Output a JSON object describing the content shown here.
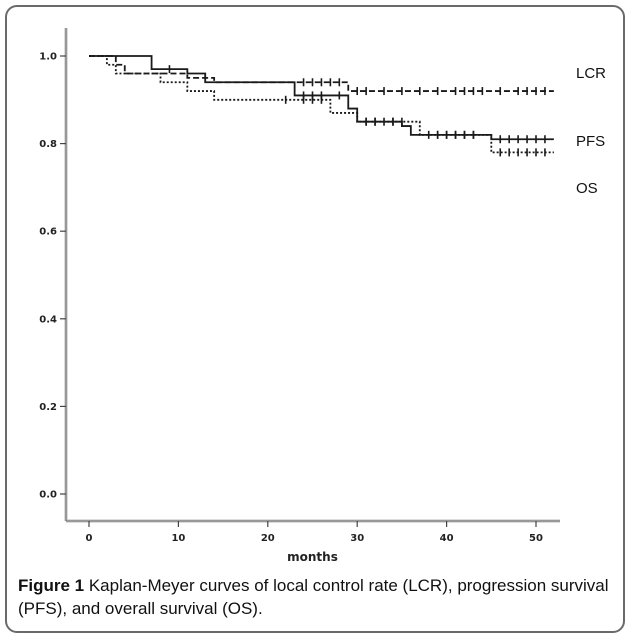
{
  "chart_data": {
    "type": "line",
    "title": "",
    "xlabel": "months",
    "ylabel": "",
    "xlim": [
      0,
      52
    ],
    "ylim": [
      0.0,
      1.0
    ],
    "xticks": [
      0,
      10,
      20,
      30,
      40,
      50
    ],
    "xtick_labels": [
      "0",
      "10",
      "20",
      "30",
      "40",
      "50"
    ],
    "yticks": [
      0.0,
      0.2,
      0.4,
      0.6,
      0.8,
      1.0
    ],
    "ytick_labels": [
      "0.0",
      "0.2",
      "0.4",
      "0.6",
      "0.8",
      "1.0"
    ],
    "grid": false,
    "series": [
      {
        "name": "LCR",
        "style": "dashed",
        "steps": [
          [
            0,
            1.0
          ],
          [
            3,
            0.98
          ],
          [
            4,
            0.96
          ],
          [
            11,
            0.95
          ],
          [
            14,
            0.94
          ],
          [
            29,
            0.92
          ],
          [
            52,
            0.92
          ]
        ],
        "censored": [
          [
            13,
            0.95
          ],
          [
            24,
            0.94
          ],
          [
            25,
            0.94
          ],
          [
            26,
            0.94
          ],
          [
            27,
            0.94
          ],
          [
            28,
            0.94
          ],
          [
            30,
            0.92
          ],
          [
            31,
            0.92
          ],
          [
            33,
            0.92
          ],
          [
            35,
            0.92
          ],
          [
            37,
            0.92
          ],
          [
            39,
            0.92
          ],
          [
            41,
            0.92
          ],
          [
            42,
            0.92
          ],
          [
            43,
            0.92
          ],
          [
            44,
            0.92
          ],
          [
            46,
            0.92
          ],
          [
            48,
            0.92
          ],
          [
            49,
            0.92
          ],
          [
            50,
            0.92
          ],
          [
            51,
            0.92
          ]
        ]
      },
      {
        "name": "PFS",
        "style": "solid",
        "steps": [
          [
            0,
            1.0
          ],
          [
            7,
            0.97
          ],
          [
            11,
            0.96
          ],
          [
            13,
            0.94
          ],
          [
            23,
            0.91
          ],
          [
            29,
            0.88
          ],
          [
            30,
            0.85
          ],
          [
            35,
            0.84
          ],
          [
            36,
            0.82
          ],
          [
            45,
            0.81
          ],
          [
            52,
            0.81
          ]
        ],
        "censored": [
          [
            9,
            0.97
          ],
          [
            24,
            0.91
          ],
          [
            25,
            0.91
          ],
          [
            26,
            0.91
          ],
          [
            28,
            0.91
          ],
          [
            31,
            0.85
          ],
          [
            32,
            0.85
          ],
          [
            33,
            0.85
          ],
          [
            34,
            0.85
          ],
          [
            38,
            0.82
          ],
          [
            39,
            0.82
          ],
          [
            40,
            0.82
          ],
          [
            41,
            0.82
          ],
          [
            42,
            0.82
          ],
          [
            43,
            0.82
          ],
          [
            46,
            0.81
          ],
          [
            47,
            0.81
          ],
          [
            48,
            0.81
          ],
          [
            49,
            0.81
          ],
          [
            50,
            0.81
          ],
          [
            51,
            0.81
          ]
        ]
      },
      {
        "name": "OS",
        "style": "dotted",
        "steps": [
          [
            0,
            1.0
          ],
          [
            2,
            0.98
          ],
          [
            3,
            0.96
          ],
          [
            8,
            0.94
          ],
          [
            11,
            0.92
          ],
          [
            14,
            0.9
          ],
          [
            23,
            0.9
          ],
          [
            27,
            0.87
          ],
          [
            30,
            0.85
          ],
          [
            37,
            0.82
          ],
          [
            45,
            0.78
          ],
          [
            52,
            0.78
          ]
        ],
        "censored": [
          [
            22,
            0.9
          ],
          [
            24,
            0.9
          ],
          [
            25,
            0.9
          ],
          [
            26,
            0.9
          ],
          [
            31,
            0.85
          ],
          [
            32,
            0.85
          ],
          [
            34,
            0.85
          ],
          [
            35,
            0.85
          ],
          [
            39,
            0.82
          ],
          [
            40,
            0.82
          ],
          [
            41,
            0.82
          ],
          [
            42,
            0.82
          ],
          [
            43,
            0.82
          ],
          [
            46,
            0.78
          ],
          [
            47,
            0.78
          ],
          [
            48,
            0.78
          ],
          [
            49,
            0.78
          ],
          [
            50,
            0.78
          ],
          [
            51,
            0.78
          ]
        ]
      }
    ],
    "end_labels": [
      {
        "series": "LCR",
        "text": "LCR"
      },
      {
        "series": "PFS",
        "text": "PFS"
      },
      {
        "series": "OS",
        "text": "OS"
      }
    ]
  },
  "caption": {
    "figure_label": "Figure 1",
    "text": " Kaplan-Meyer curves of local control rate (LCR), progression survival (PFS), and overall survival (OS)."
  }
}
